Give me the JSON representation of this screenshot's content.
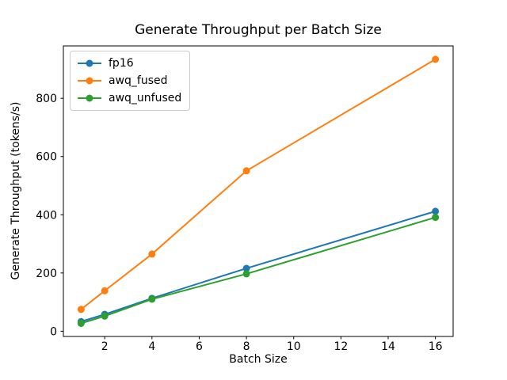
{
  "chart_data": {
    "type": "line",
    "title": "Generate Throughput per Batch Size",
    "xlabel": "Batch Size",
    "ylabel": "Generate Throughput (tokens/s)",
    "x": [
      1,
      2,
      4,
      8,
      16
    ],
    "series": [
      {
        "name": "fp16",
        "color": "#1f77b4",
        "values": [
          33,
          58,
          113,
          216,
          412
        ]
      },
      {
        "name": "awq_fused",
        "color": "#ff7f0e",
        "values": [
          75,
          139,
          265,
          551,
          934
        ]
      },
      {
        "name": "awq_unfused",
        "color": "#2ca02c",
        "values": [
          27,
          52,
          110,
          197,
          391
        ]
      }
    ],
    "xticks": [
      2,
      4,
      6,
      8,
      10,
      12,
      14,
      16
    ],
    "yticks": [
      0,
      200,
      400,
      600,
      800
    ],
    "xlim": [
      0.25,
      16.75
    ],
    "ylim": [
      -18,
      980
    ],
    "legend_position": "upper left",
    "grid": false,
    "marker": "o",
    "background_color": "#ffffff",
    "axes_color": "#000000"
  }
}
